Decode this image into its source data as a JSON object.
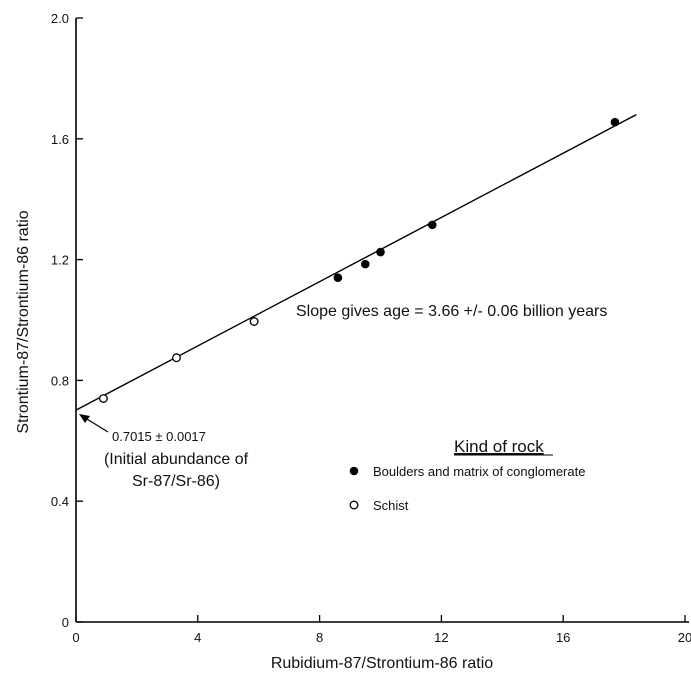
{
  "chart_data": {
    "type": "scatter",
    "xlabel": "Rubidium-87/Strontium-86 ratio",
    "ylabel": "Strontium-87/Strontium-86 ratio",
    "xlim": [
      0,
      20
    ],
    "ylim": [
      0,
      2.0
    ],
    "x_ticks": [
      0,
      4,
      8,
      12,
      16,
      20
    ],
    "x_tick_labels": [
      "0",
      "4",
      "8",
      "12",
      "16",
      "20"
    ],
    "y_ticks": [
      0,
      0.4,
      0.8,
      1.2,
      1.6,
      2.0
    ],
    "y_tick_labels": [
      "0",
      "0.4",
      "0.8",
      "1.2",
      "1.6",
      "2.0"
    ],
    "grid": false,
    "legend": {
      "title": "Kind of rock",
      "placement": "bottom-right"
    },
    "series": [
      {
        "name": "Boulders and matrix of conglomerate",
        "marker": "filled-circle",
        "color": "#000000",
        "points": [
          {
            "x": 8.6,
            "y": 1.14
          },
          {
            "x": 9.5,
            "y": 1.185
          },
          {
            "x": 10.0,
            "y": 1.225
          },
          {
            "x": 11.7,
            "y": 1.315
          },
          {
            "x": 17.7,
            "y": 1.655
          }
        ]
      },
      {
        "name": "Schist",
        "marker": "open-circle",
        "color": "#000000",
        "points": [
          {
            "x": 0.9,
            "y": 0.74
          },
          {
            "x": 3.3,
            "y": 0.875
          },
          {
            "x": 5.85,
            "y": 0.995
          }
        ]
      }
    ],
    "fit_line": {
      "x_start": 0,
      "y_start": 0.7015,
      "x_end": 18.4,
      "y_end": 1.68
    },
    "annotations": {
      "slope_text": "Slope gives age = 3.66 +/- 0.06 billion years",
      "intercept_value": "0.7015 ± 0.0017",
      "intercept_line1": "(Initial abundance of",
      "intercept_line2": "Sr-87/Sr-86)"
    }
  }
}
